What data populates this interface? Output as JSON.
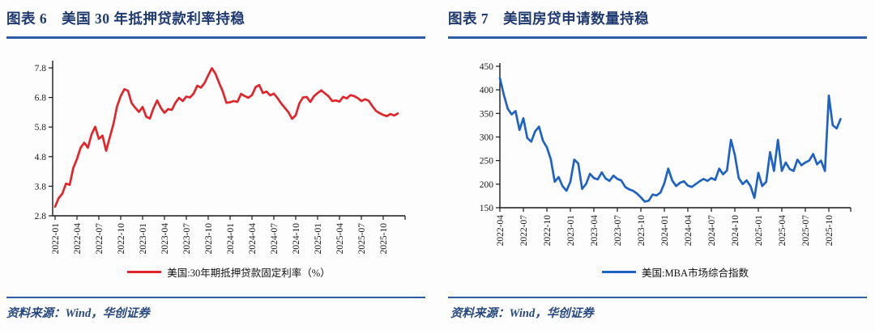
{
  "page": {
    "background": "#fdfdfd",
    "accent_color": "#2e5da6",
    "title_color": "#1f3a70"
  },
  "figures": [
    {
      "title": "图表 6　美国 30 年抵押贷款利率持稳",
      "legend": "美国:30年期抵押贷款固定利率（%）",
      "source": "资料来源：Wind，华创证券"
    },
    {
      "title": "图表 7　美国房贷申请数量持稳",
      "legend": "美国:MBA市场综合指数",
      "source": "资料来源：Wind，华创证券"
    }
  ],
  "chart_data": [
    {
      "type": "line",
      "title": "美国 30 年抵押贷款利率持稳",
      "x_start": "2022-01",
      "points_per_month": 2,
      "x_tick_labels": [
        "2022-01",
        "2022-04",
        "2022-07",
        "2022-10",
        "2023-01",
        "2023-04",
        "2023-07",
        "2023-10",
        "2024-01",
        "2024-04",
        "2024-07",
        "2024-10",
        "2025-01",
        "2025-04",
        "2025-07",
        "2025-10"
      ],
      "ytick_labels": [
        "2.8",
        "3.8",
        "4.8",
        "5.8",
        "6.8",
        "7.8"
      ],
      "ylim": [
        2.8,
        7.8
      ],
      "grid": false,
      "legend_position": "bottom",
      "series": [
        {
          "name": "美国:30年期抵押贷款固定利率（%）",
          "color": "#e2242b",
          "values": [
            3.11,
            3.4,
            3.55,
            3.89,
            3.85,
            4.42,
            4.72,
            5.1,
            5.27,
            5.1,
            5.55,
            5.81,
            5.4,
            5.51,
            5.0,
            5.45,
            5.9,
            6.5,
            6.85,
            7.08,
            7.03,
            6.61,
            6.45,
            6.31,
            6.48,
            6.15,
            6.09,
            6.44,
            6.7,
            6.45,
            6.28,
            6.41,
            6.38,
            6.62,
            6.79,
            6.68,
            6.83,
            6.8,
            6.93,
            7.2,
            7.13,
            7.29,
            7.55,
            7.79,
            7.6,
            7.29,
            7.0,
            6.62,
            6.64,
            6.68,
            6.65,
            6.92,
            6.85,
            6.79,
            6.88,
            7.15,
            7.22,
            6.95,
            7.0,
            6.87,
            6.93,
            6.78,
            6.6,
            6.45,
            6.3,
            6.08,
            6.2,
            6.6,
            6.8,
            6.82,
            6.65,
            6.84,
            6.95,
            7.04,
            6.94,
            6.84,
            6.68,
            6.7,
            6.66,
            6.82,
            6.77,
            6.88,
            6.85,
            6.78,
            6.68,
            6.74,
            6.69,
            6.51,
            6.35,
            6.27,
            6.21,
            6.17,
            6.24,
            6.19,
            6.26
          ]
        }
      ]
    },
    {
      "type": "line",
      "title": "美国房贷申请数量持稳",
      "x_start": "2022-04",
      "points_per_month": 2,
      "x_tick_labels": [
        "2022-04",
        "2022-07",
        "2022-10",
        "2023-01",
        "2023-04",
        "2023-07",
        "2023-10",
        "2024-01",
        "2024-04",
        "2024-07",
        "2024-10",
        "2025-01",
        "2025-04",
        "2025-07",
        "2025-10"
      ],
      "ytick_labels": [
        "150",
        "200",
        "250",
        "300",
        "350",
        "400",
        "450"
      ],
      "ylim": [
        150,
        450
      ],
      "grid": false,
      "legend_position": "bottom",
      "series": [
        {
          "name": "美国:MBA市场综合指数",
          "color": "#1e63c4",
          "values": [
            425,
            390,
            360,
            348,
            355,
            315,
            340,
            298,
            290,
            312,
            322,
            292,
            278,
            253,
            205,
            215,
            196,
            186,
            205,
            252,
            244,
            190,
            200,
            222,
            213,
            210,
            225,
            212,
            207,
            218,
            211,
            208,
            194,
            189,
            186,
            180,
            172,
            163,
            165,
            178,
            176,
            182,
            202,
            233,
            208,
            196,
            203,
            206,
            197,
            194,
            200,
            206,
            211,
            207,
            213,
            209,
            233,
            221,
            229,
            294,
            262,
            213,
            200,
            208,
            196,
            171,
            224,
            196,
            205,
            268,
            228,
            294,
            228,
            246,
            232,
            228,
            252,
            240,
            246,
            250,
            264,
            242,
            250,
            228,
            388,
            325,
            318,
            338
          ]
        }
      ]
    }
  ]
}
